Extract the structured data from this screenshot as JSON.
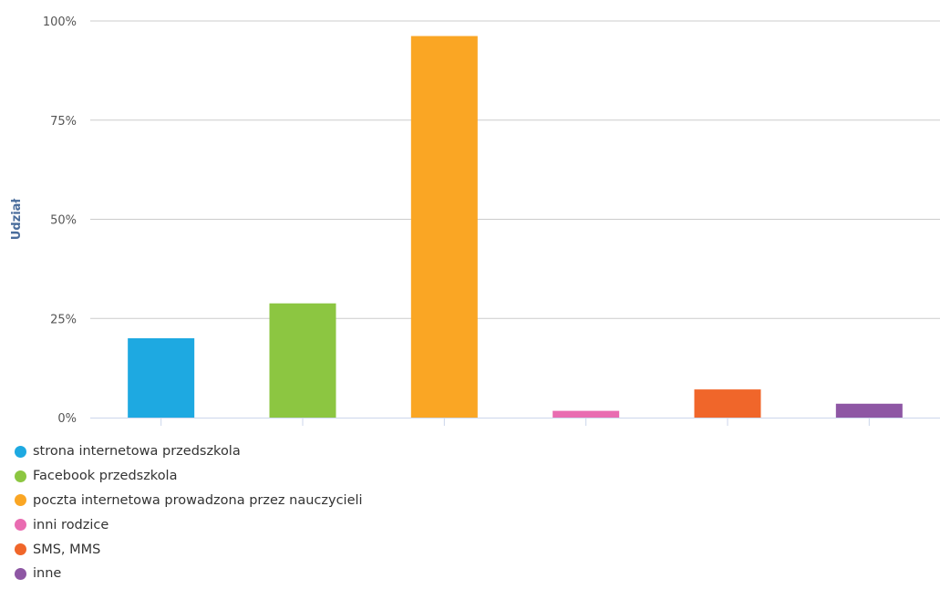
{
  "chart_data": {
    "type": "bar",
    "title": "",
    "xlabel": "",
    "ylabel": "Udział",
    "ylim": [
      0,
      100
    ],
    "yticks": [
      "0%",
      "25%",
      "50%",
      "75%",
      "100%"
    ],
    "grid": true,
    "legend_position": "bottom-left",
    "categories": [
      "strona internetowa przedszkola",
      "Facebook przedszkola",
      "poczta internetowa prowadzona przez nauczycieli",
      "inni rodzice",
      "SMS, MMS",
      "inne"
    ],
    "values": [
      20,
      28.8,
      96.2,
      1.7,
      7.1,
      3.5
    ],
    "colors": [
      "#1ea9e1",
      "#8cc641",
      "#faa624",
      "#e96cb1",
      "#f0662a",
      "#8e57a4"
    ]
  }
}
